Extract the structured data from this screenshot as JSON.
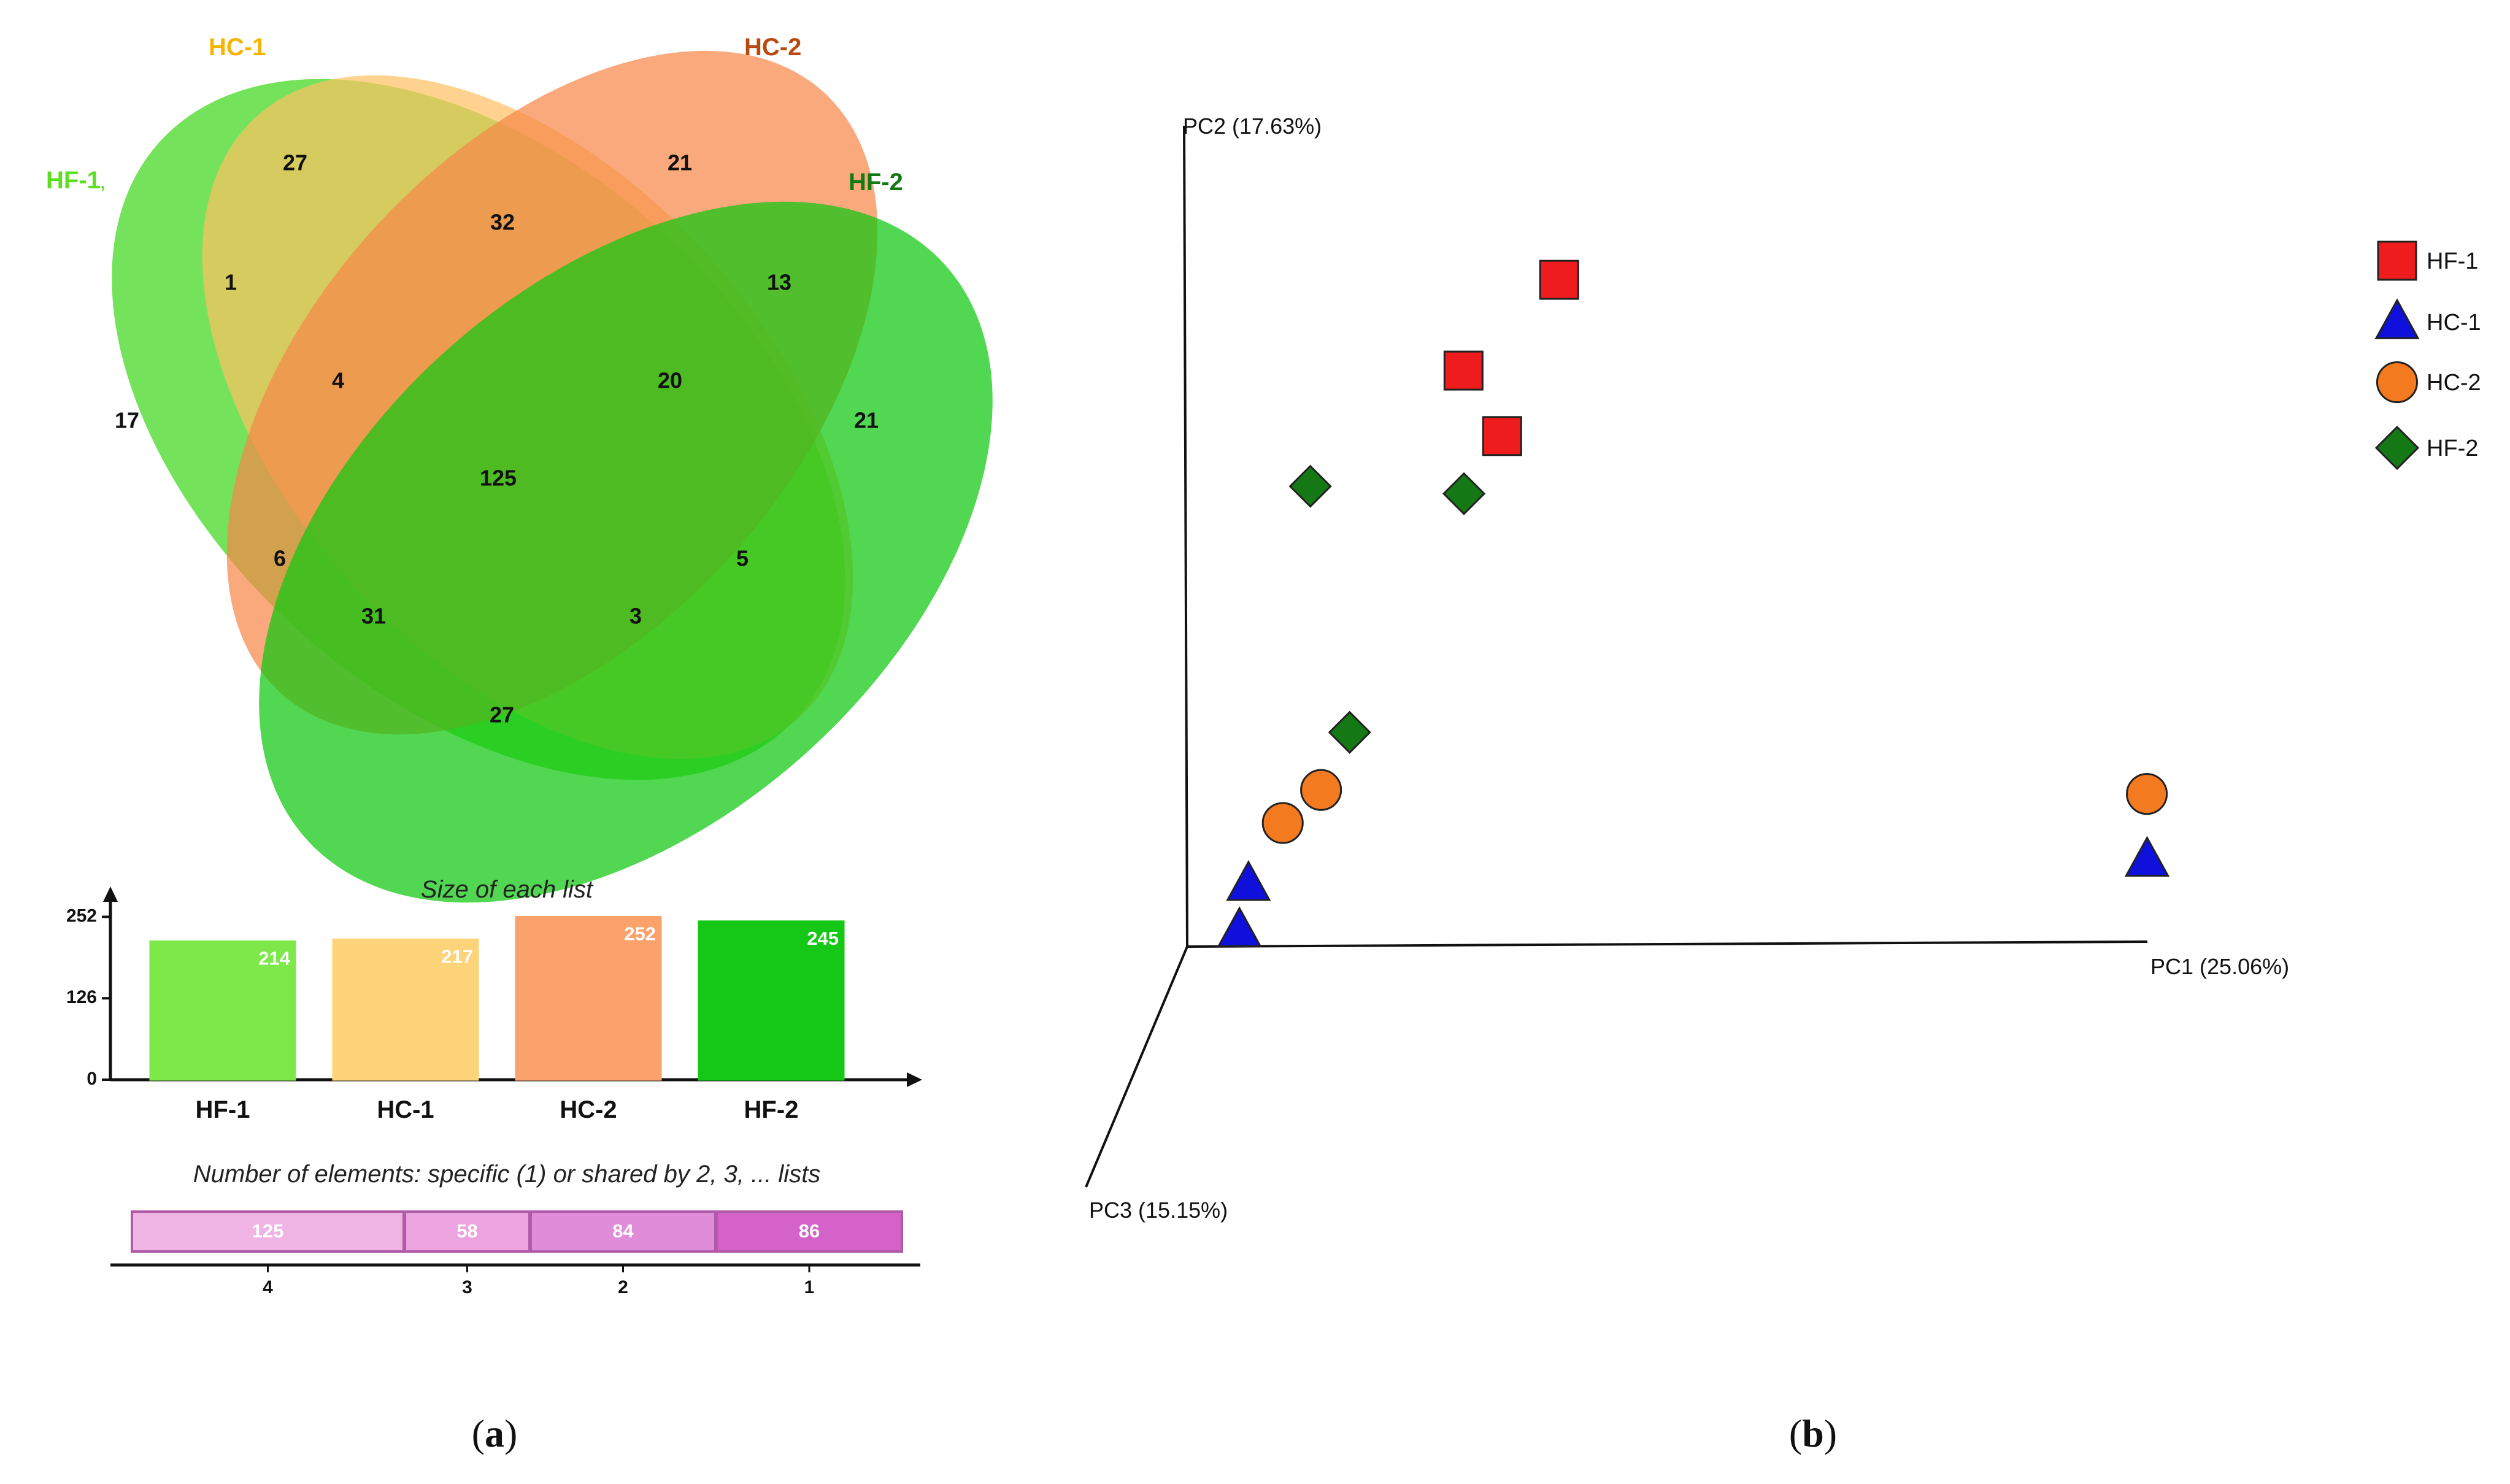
{
  "venn": {
    "sets": [
      {
        "name": "HF-1",
        "label_color": "#5be020",
        "fill": "#3fd81c",
        "opacity": 0.72
      },
      {
        "name": "HC-1",
        "label_color": "#f5b400",
        "fill": "#ffc060",
        "opacity": 0.7
      },
      {
        "name": "HC-2",
        "label_color": "#b84a10",
        "fill": "#f7884a",
        "opacity": 0.72
      },
      {
        "name": "HF-2",
        "label_color": "#137a13",
        "fill": "#0fc70f",
        "opacity": 0.72
      }
    ],
    "hf1_label_suffix": ",",
    "regions": [
      {
        "id": "HC-1 only",
        "value": "27"
      },
      {
        "id": "HC-2 only",
        "value": "21"
      },
      {
        "id": "HF-1 only",
        "value": "17"
      },
      {
        "id": "HF-2 only",
        "value": "21"
      },
      {
        "id": "HC-1 & HC-2",
        "value": "32"
      },
      {
        "id": "HF-1 & HC-1",
        "value": "1"
      },
      {
        "id": "HC-2 & HF-2",
        "value": "13"
      },
      {
        "id": "HF-1 & HC-1 & HC-2",
        "value": "4"
      },
      {
        "id": "HC-1 & HC-2 & HF-2",
        "value": "20"
      },
      {
        "id": "all four",
        "value": "125"
      },
      {
        "id": "HF-1 & HC-2",
        "value": "6"
      },
      {
        "id": "HC-1 & HF-2",
        "value": "5"
      },
      {
        "id": "HF-1 & HC-2 & HF-2",
        "value": "31"
      },
      {
        "id": "HF-1 & HC-1 & HF-2",
        "value": "3"
      },
      {
        "id": "HF-1 & HF-2",
        "value": "27"
      }
    ]
  },
  "chart_data": [
    {
      "type": "bar",
      "title": "Size of each list",
      "categories": [
        "HF-1",
        "HC-1",
        "HC-2",
        "HF-2"
      ],
      "values": [
        214,
        217,
        252,
        245
      ],
      "value_labels": [
        "214",
        "217",
        "252",
        "245"
      ],
      "colors": [
        "#7ee84a",
        "#fdd47a",
        "#fba26c",
        "#16c816"
      ],
      "yticks": [
        0,
        126,
        252
      ],
      "ytick_labels": [
        "0",
        "126",
        "252"
      ],
      "ylim": [
        0,
        280
      ]
    },
    {
      "type": "bar",
      "orientation": "horizontal-stacked",
      "title": "Number of elements: specific (1) or shared by 2, 3, ... lists",
      "categories": [
        "4",
        "3",
        "2",
        "1"
      ],
      "values": [
        125,
        58,
        84,
        86
      ],
      "value_labels": [
        "125",
        "58",
        "84",
        "86"
      ],
      "colors": [
        "#f0b4e4",
        "#eca4e0",
        "#e08cd8",
        "#d462c8"
      ]
    },
    {
      "type": "scatter",
      "projection": "3d",
      "axes": {
        "pc1": "PC1 (25.06%)",
        "pc2": "PC2 (17.63%)",
        "pc3": "PC3 (15.15%)"
      },
      "series": [
        {
          "name": "HF-1",
          "marker": "square",
          "color": "#ee1c1c",
          "points": [
            [
              0.39,
              0.81,
              0.0
            ],
            [
              0.29,
              0.7,
              0.0
            ],
            [
              0.33,
              0.62,
              0.0
            ]
          ]
        },
        {
          "name": "HC-1",
          "marker": "triangle",
          "color": "#1010dd",
          "points": [
            [
              1.0,
              0.1,
              0.0
            ],
            [
              0.08,
              0.09,
              0.24
            ],
            [
              0.08,
              0.12,
              0.15
            ]
          ]
        },
        {
          "name": "HC-2",
          "marker": "circle",
          "color": "#f47a20",
          "points": [
            [
              1.0,
              0.18,
              0.0
            ],
            [
              0.14,
              0.19,
              0.0
            ],
            [
              0.1,
              0.15,
              0.0
            ]
          ]
        },
        {
          "name": "HF-2",
          "marker": "diamond",
          "color": "#147814",
          "points": [
            [
              0.13,
              0.56,
              0.0
            ],
            [
              0.29,
              0.55,
              0.0
            ],
            [
              0.17,
              0.26,
              0.0
            ]
          ]
        }
      ],
      "legend": [
        "HF-1",
        "HC-1",
        "HC-2",
        "HF-2"
      ]
    }
  ],
  "panels": {
    "a": "a",
    "b": "b"
  }
}
